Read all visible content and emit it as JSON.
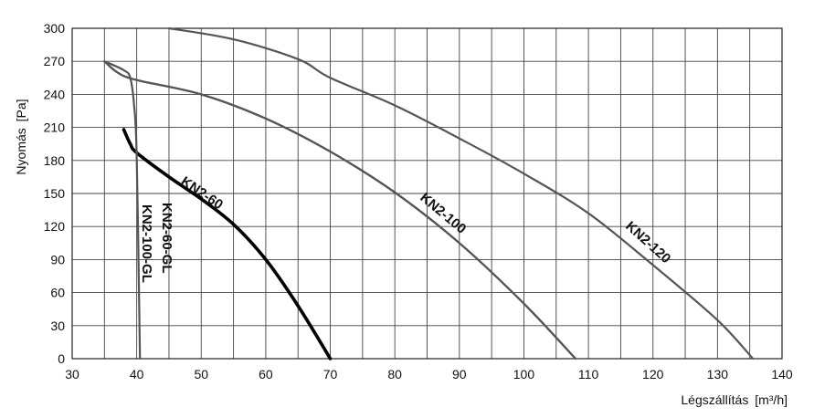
{
  "chart_data": {
    "type": "line",
    "title": "",
    "xlabel": "Légszállítás",
    "xunit": "[m³/h]",
    "ylabel": "Nyomás",
    "yunit": "[Pa]",
    "xlim": [
      30,
      140
    ],
    "ylim": [
      0,
      300
    ],
    "x_ticks": [
      30,
      40,
      50,
      60,
      70,
      80,
      90,
      100,
      110,
      120,
      130,
      140
    ],
    "y_ticks": [
      0,
      30,
      60,
      90,
      120,
      150,
      180,
      210,
      240,
      270,
      300
    ],
    "x_minor_step": 5,
    "grid": true,
    "series": [
      {
        "name": "KN2-60",
        "color": "#000000",
        "points": [
          [
            38,
            208
          ],
          [
            39,
            195
          ],
          [
            40,
            187
          ],
          [
            45,
            165
          ],
          [
            50,
            145
          ],
          [
            55,
            122
          ],
          [
            60,
            90
          ],
          [
            65,
            48
          ],
          [
            70,
            0
          ]
        ]
      },
      {
        "name": "KN2-60-GL",
        "color": "#555555",
        "points": [
          [
            35,
            270
          ],
          [
            38,
            262
          ],
          [
            39,
            255
          ],
          [
            39.6,
            230
          ],
          [
            40,
            185
          ],
          [
            40.4,
            40
          ],
          [
            40.5,
            0
          ]
        ]
      },
      {
        "name": "KN2-100-GL",
        "color": "#555555",
        "points": [
          [
            35,
            270
          ],
          [
            37,
            260
          ],
          [
            40,
            253
          ],
          [
            50,
            240
          ],
          [
            60,
            218
          ],
          [
            70,
            188
          ],
          [
            80,
            151
          ],
          [
            90,
            105
          ],
          [
            100,
            50
          ],
          [
            108,
            0
          ]
        ]
      },
      {
        "name": "KN2-100",
        "color": "#555555",
        "points": [
          [
            35,
            270
          ],
          [
            37,
            260
          ],
          [
            40,
            253
          ],
          [
            50,
            240
          ],
          [
            60,
            218
          ],
          [
            70,
            188
          ],
          [
            80,
            151
          ],
          [
            90,
            105
          ],
          [
            100,
            50
          ],
          [
            108,
            0
          ]
        ]
      },
      {
        "name": "KN2-120",
        "color": "#555555",
        "points": [
          [
            45,
            300
          ],
          [
            55,
            290
          ],
          [
            65,
            272
          ],
          [
            70,
            255
          ],
          [
            80,
            230
          ],
          [
            90,
            200
          ],
          [
            100,
            168
          ],
          [
            110,
            132
          ],
          [
            120,
            85
          ],
          [
            130,
            35
          ],
          [
            135.5,
            0
          ]
        ]
      }
    ],
    "annotations": [
      {
        "text": "KN2-60",
        "series": "KN2-60"
      },
      {
        "text": "KN2-60-GL",
        "series": "KN2-60-GL"
      },
      {
        "text": "KN2-100-GL",
        "series": "KN2-100-GL"
      },
      {
        "text": "KN2-100",
        "series": "KN2-100"
      },
      {
        "text": "KN2-120",
        "series": "KN2-120"
      }
    ]
  }
}
